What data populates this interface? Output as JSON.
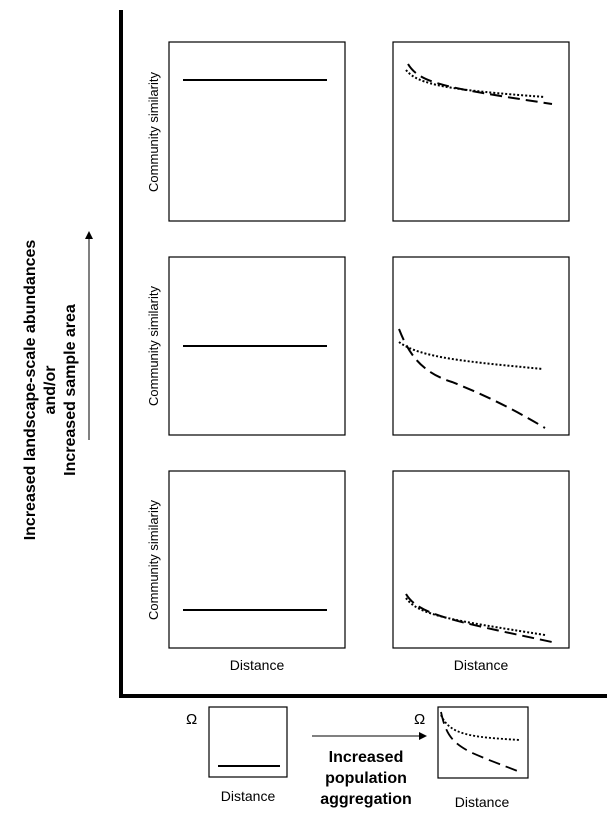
{
  "y_axis_title": {
    "line1": "Increased landscape-scale abundances",
    "line2": "and/or",
    "line3": "Increased sample area"
  },
  "panel_ylabel": "Community similarity",
  "panel_xlabel": "Distance",
  "legend": {
    "omega": "Ω",
    "x_axis_title": {
      "line1": "Increased",
      "line2": "population",
      "line3": "aggregation"
    },
    "left_xlabel": "Distance",
    "right_xlabel": "Distance"
  }
}
